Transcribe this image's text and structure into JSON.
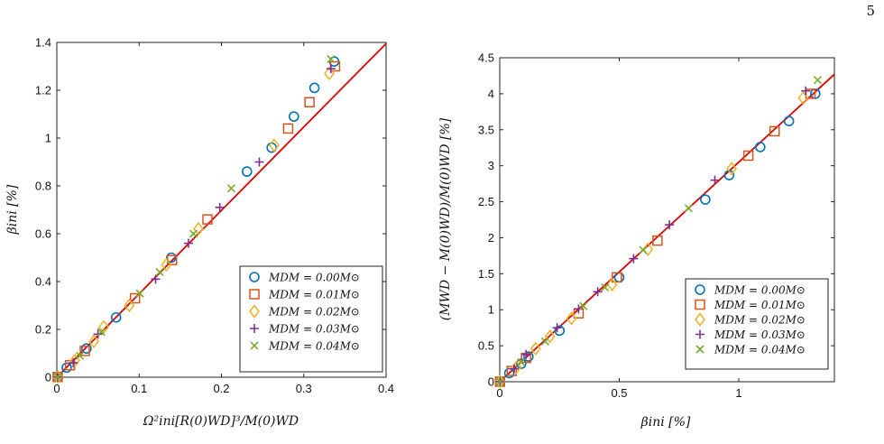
{
  "page": {
    "number": "5"
  },
  "colors": {
    "M0.00": "#0072BD",
    "M0.01": "#D95319",
    "M0.02": "#EDB120",
    "M0.03": "#7E2F8E",
    "M0.04": "#77AC30",
    "fit_line": "#E00000"
  },
  "markers": {
    "M0.00": "circle",
    "M0.01": "square",
    "M0.02": "diamond",
    "M0.03": "plus",
    "M0.04": "cross"
  },
  "chart_data": [
    {
      "type": "scatter",
      "xlabel": "Ω²ini[R(0)WD]³/M(0)WD",
      "ylabel": "βini [%]",
      "xlim": [
        0,
        0.4
      ],
      "ylim": [
        0,
        1.4
      ],
      "xticks": [
        0,
        0.1,
        0.2,
        0.3,
        0.4
      ],
      "xtick_labels": [
        "0",
        "0.1",
        "0.2",
        "0.3",
        "0.4"
      ],
      "yticks": [
        0,
        0.2,
        0.4,
        0.6,
        0.8,
        1.0,
        1.2,
        1.4
      ],
      "ytick_labels": [
        "0",
        "0.2",
        "0.4",
        "0.6",
        "0.8",
        "1",
        "1.2",
        "1.4"
      ],
      "grid": false,
      "legend_position": "bottom-right",
      "fit_line": {
        "x": [
          0,
          0.41
        ],
        "y": [
          0,
          1.43
        ]
      },
      "series": [
        {
          "name": "MDM = 0.00M⊙",
          "key": "M0.00",
          "points": [
            [
              0.001,
              0.001
            ],
            [
              0.012,
              0.04
            ],
            [
              0.036,
              0.12
            ],
            [
              0.072,
              0.25
            ],
            [
              0.139,
              0.5
            ],
            [
              0.231,
              0.86
            ],
            [
              0.261,
              0.96
            ],
            [
              0.288,
              1.09
            ],
            [
              0.313,
              1.21
            ],
            [
              0.337,
              1.32
            ]
          ]
        },
        {
          "name": "MDM = 0.01M⊙",
          "key": "M0.01",
          "points": [
            [
              0.001,
              0.001
            ],
            [
              0.016,
              0.05
            ],
            [
              0.034,
              0.11
            ],
            [
              0.095,
              0.33
            ],
            [
              0.14,
              0.49
            ],
            [
              0.183,
              0.66
            ],
            [
              0.281,
              1.04
            ],
            [
              0.307,
              1.15
            ],
            [
              0.338,
              1.3
            ]
          ]
        },
        {
          "name": "MDM = 0.02M⊙",
          "key": "M0.02",
          "points": [
            [
              0.001,
              0.001
            ],
            [
              0.022,
              0.07
            ],
            [
              0.045,
              0.15
            ],
            [
              0.057,
              0.21
            ],
            [
              0.088,
              0.3
            ],
            [
              0.133,
              0.47
            ],
            [
              0.172,
              0.62
            ],
            [
              0.264,
              0.97
            ],
            [
              0.331,
              1.27
            ]
          ]
        },
        {
          "name": "MDM = 0.03M⊙",
          "key": "M0.03",
          "points": [
            [
              0.001,
              0.001
            ],
            [
              0.02,
              0.06
            ],
            [
              0.05,
              0.18
            ],
            [
              0.12,
              0.41
            ],
            [
              0.16,
              0.56
            ],
            [
              0.198,
              0.71
            ],
            [
              0.246,
              0.9
            ],
            [
              0.333,
              1.29
            ]
          ]
        },
        {
          "name": "MDM = 0.04M⊙",
          "key": "M0.04",
          "points": [
            [
              0.001,
              0.001
            ],
            [
              0.028,
              0.09
            ],
            [
              0.054,
              0.19
            ],
            [
              0.101,
              0.35
            ],
            [
              0.125,
              0.44
            ],
            [
              0.166,
              0.6
            ],
            [
              0.212,
              0.79
            ],
            [
              0.333,
              1.33
            ]
          ]
        }
      ]
    },
    {
      "type": "scatter",
      "xlabel": "βini [%]",
      "ylabel": "(MWD − M(0)WD)/M(0)WD [%]",
      "xlim": [
        0,
        1.4
      ],
      "ylim": [
        0,
        4.5
      ],
      "xticks": [
        0,
        0.5,
        1.0
      ],
      "xtick_labels": [
        "0",
        "0.5",
        "1"
      ],
      "yticks": [
        0,
        0.5,
        1,
        1.5,
        2,
        2.5,
        3,
        3.5,
        4,
        4.5
      ],
      "ytick_labels": [
        "0",
        "0.5",
        "1",
        "1.5",
        "2",
        "2.5",
        "3",
        "3.5",
        "4",
        "4.5"
      ],
      "grid": false,
      "legend_position": "bottom-right",
      "fit_line": {
        "x": [
          0,
          1.4
        ],
        "y": [
          0,
          4.27
        ]
      },
      "series": [
        {
          "name": "MDM = 0.00M⊙",
          "key": "M0.00",
          "points": [
            [
              0.001,
              0.001
            ],
            [
              0.04,
              0.12
            ],
            [
              0.09,
              0.25
            ],
            [
              0.12,
              0.35
            ],
            [
              0.25,
              0.71
            ],
            [
              0.5,
              1.45
            ],
            [
              0.86,
              2.53
            ],
            [
              0.96,
              2.87
            ],
            [
              1.09,
              3.26
            ],
            [
              1.21,
              3.62
            ],
            [
              1.32,
              4.0
            ]
          ]
        },
        {
          "name": "MDM = 0.01M⊙",
          "key": "M0.01",
          "points": [
            [
              0.001,
              0.001
            ],
            [
              0.05,
              0.15
            ],
            [
              0.11,
              0.33
            ],
            [
              0.33,
              0.95
            ],
            [
              0.49,
              1.45
            ],
            [
              0.66,
              1.96
            ],
            [
              1.04,
              3.14
            ],
            [
              1.15,
              3.48
            ],
            [
              1.3,
              4.0
            ]
          ]
        },
        {
          "name": "MDM = 0.02M⊙",
          "key": "M0.02",
          "points": [
            [
              0.001,
              0.001
            ],
            [
              0.07,
              0.2
            ],
            [
              0.15,
              0.46
            ],
            [
              0.21,
              0.63
            ],
            [
              0.3,
              0.88
            ],
            [
              0.47,
              1.35
            ],
            [
              0.62,
              1.84
            ],
            [
              0.97,
              2.96
            ],
            [
              1.27,
              3.94
            ]
          ]
        },
        {
          "name": "MDM = 0.03M⊙",
          "key": "M0.03",
          "points": [
            [
              0.001,
              0.001
            ],
            [
              0.06,
              0.18
            ],
            [
              0.11,
              0.38
            ],
            [
              0.24,
              0.75
            ],
            [
              0.33,
              1.01
            ],
            [
              0.41,
              1.25
            ],
            [
              0.56,
              1.71
            ],
            [
              0.71,
              2.18
            ],
            [
              0.9,
              2.8
            ],
            [
              1.28,
              4.04
            ]
          ]
        },
        {
          "name": "MDM = 0.04M⊙",
          "key": "M0.04",
          "points": [
            [
              0.001,
              0.001
            ],
            [
              0.09,
              0.27
            ],
            [
              0.19,
              0.56
            ],
            [
              0.35,
              1.05
            ],
            [
              0.44,
              1.31
            ],
            [
              0.6,
              1.83
            ],
            [
              0.79,
              2.41
            ],
            [
              1.33,
              4.19
            ]
          ]
        }
      ]
    }
  ]
}
